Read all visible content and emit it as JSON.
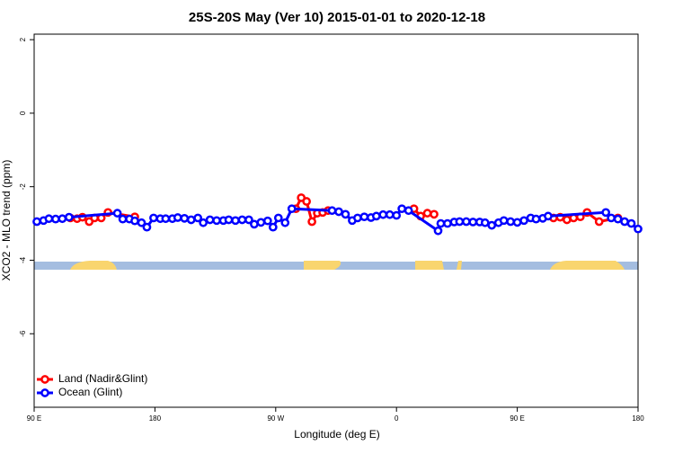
{
  "chart_data": {
    "type": "line",
    "title": "25S-20S May (Ver 10)   2015-01-01 to 2020-12-18",
    "xlabel": "Longitude (deg E)",
    "ylabel": "XCO2 - MLO trend (ppm)",
    "xlim": [
      90,
      540
    ],
    "ylim": [
      -8,
      2.15
    ],
    "xticks": [
      {
        "value": 90,
        "label": "90 E"
      },
      {
        "value": 180,
        "label": "180"
      },
      {
        "value": 270,
        "label": "90 W"
      },
      {
        "value": 360,
        "label": "0"
      },
      {
        "value": 450,
        "label": "90 E"
      },
      {
        "value": 540,
        "label": "180"
      }
    ],
    "yticks": [
      -6,
      -4,
      -2,
      0,
      2
    ],
    "legend": "bottom-left",
    "series": [
      {
        "name": "Land (Nadir&Glint)",
        "color": "#ff0000",
        "x": [
          117,
          122,
          126,
          131,
          135,
          140,
          145,
          165,
          200,
          285,
          289,
          293,
          297,
          301,
          305,
          309,
          340,
          373,
          378,
          383,
          388,
          430,
          477,
          482,
          487,
          492,
          497,
          502,
          511,
          525
        ],
        "values": [
          -2.85,
          -2.87,
          -2.83,
          -2.95,
          -2.85,
          -2.85,
          -2.7,
          -2.82,
          null,
          -2.6,
          -2.3,
          -2.4,
          -2.95,
          -2.72,
          -2.7,
          -2.65,
          null,
          -2.6,
          -2.8,
          -2.72,
          -2.75,
          null,
          -2.85,
          -2.83,
          -2.9,
          -2.85,
          -2.82,
          -2.7,
          -2.95,
          -2.85
        ]
      },
      {
        "name": "Ocean (Glint)",
        "color": "#0000ff",
        "x": [
          92,
          97,
          101,
          106,
          111,
          116,
          152,
          156,
          161,
          165,
          170,
          174,
          179,
          184,
          188,
          193,
          197,
          202,
          207,
          212,
          216,
          221,
          226,
          231,
          235,
          240,
          245,
          250,
          254,
          259,
          264,
          268,
          272,
          277,
          282,
          312,
          317,
          322,
          327,
          331,
          336,
          341,
          345,
          350,
          355,
          360,
          364,
          369,
          391,
          393,
          398,
          403,
          407,
          412,
          417,
          422,
          426,
          431,
          436,
          440,
          445,
          450,
          455,
          460,
          464,
          469,
          473,
          516,
          520,
          525,
          530,
          535,
          540
        ],
        "values": [
          -2.95,
          -2.92,
          -2.87,
          -2.88,
          -2.87,
          -2.83,
          -2.72,
          -2.88,
          -2.88,
          -2.93,
          -2.98,
          -3.1,
          -2.85,
          -2.87,
          -2.87,
          -2.87,
          -2.84,
          -2.86,
          -2.9,
          -2.85,
          -2.98,
          -2.9,
          -2.92,
          -2.92,
          -2.9,
          -2.92,
          -2.9,
          -2.9,
          -3.02,
          -2.97,
          -2.93,
          -3.1,
          -2.85,
          -2.98,
          -2.6,
          -2.65,
          -2.68,
          -2.75,
          -2.92,
          -2.85,
          -2.82,
          -2.84,
          -2.8,
          -2.76,
          -2.76,
          -2.78,
          -2.6,
          -2.65,
          -3.2,
          -3.0,
          -3.0,
          -2.96,
          -2.95,
          -2.95,
          -2.96,
          -2.96,
          -2.98,
          -3.05,
          -2.98,
          -2.92,
          -2.95,
          -2.97,
          -2.92,
          -2.85,
          -2.88,
          -2.86,
          -2.8,
          -2.7,
          -2.85,
          -2.88,
          -2.95,
          -3.0,
          -3.15
        ]
      }
    ]
  }
}
